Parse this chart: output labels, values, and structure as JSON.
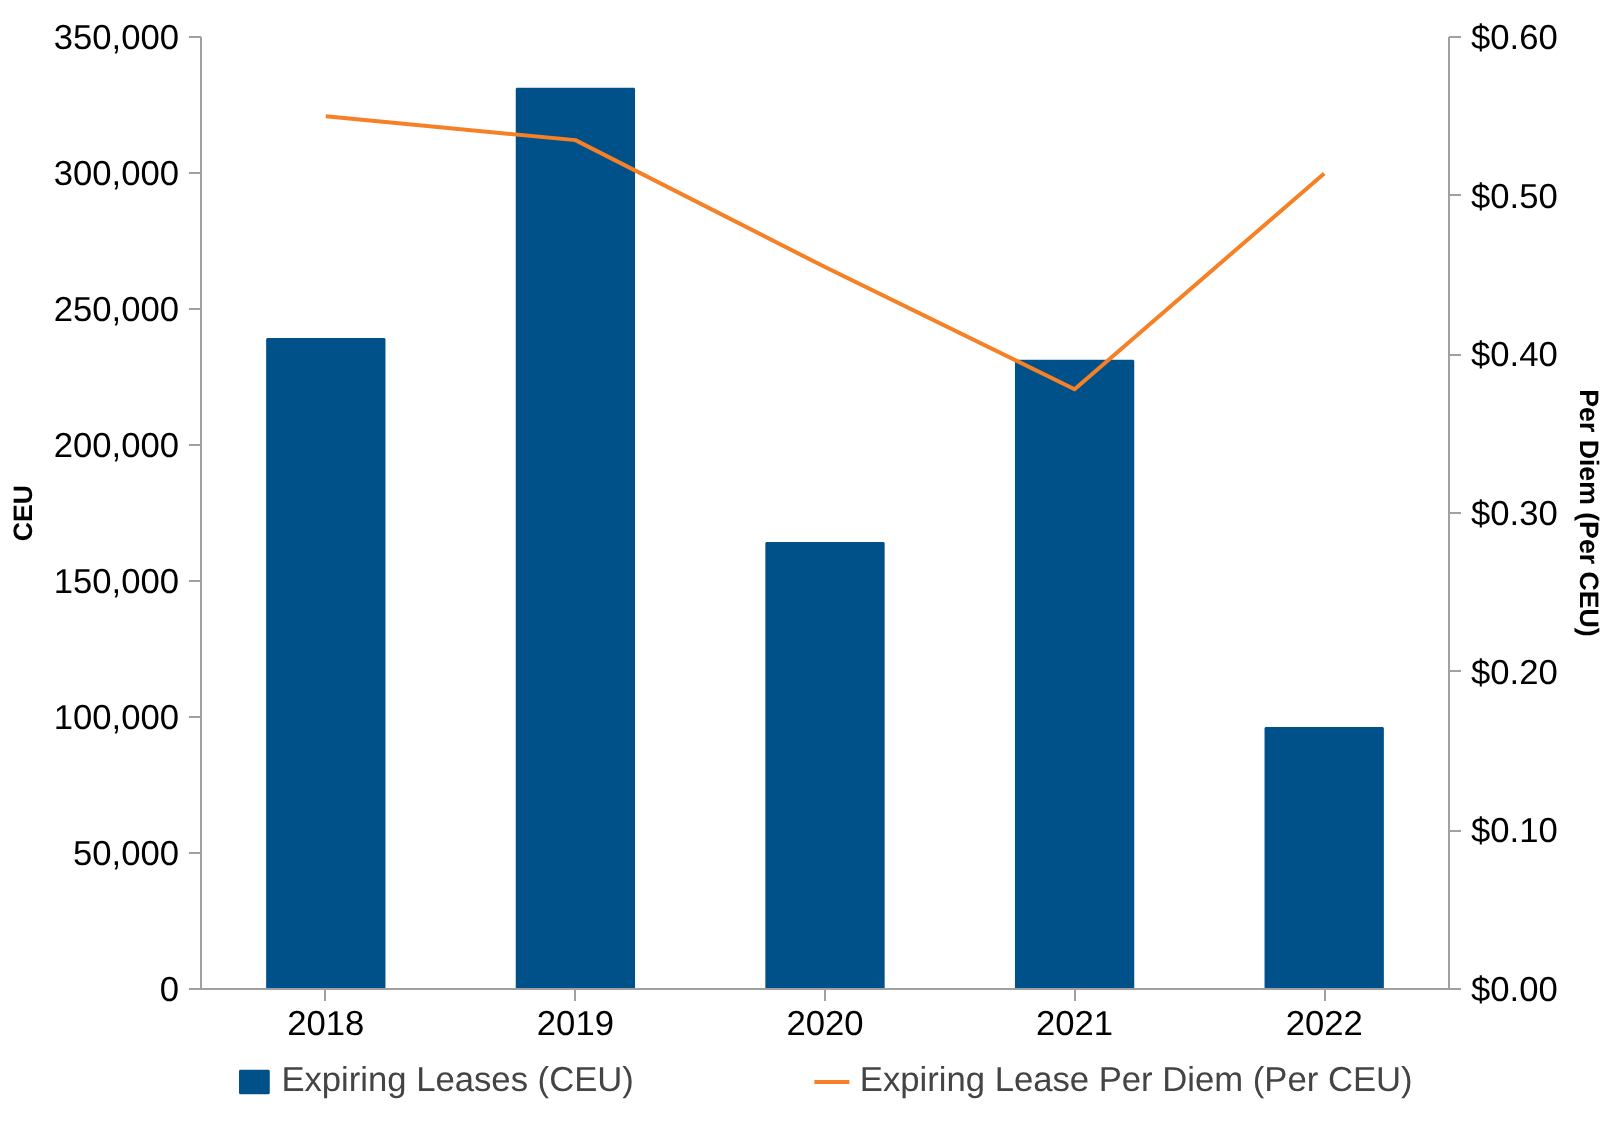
{
  "chart_data": {
    "type": "bar",
    "categories": [
      "2018",
      "2019",
      "2020",
      "2021",
      "2022"
    ],
    "ylabel": "CEU",
    "y2label": "Per Diem (Per CEU)",
    "series": [
      {
        "name": "Expiring Leases (CEU)",
        "color": "#00508a",
        "values": [
          239000,
          331000,
          164000,
          231000,
          96000
        ]
      },
      {
        "name": "Expiring Lease Per Diem (Per CEU)",
        "type": "line",
        "axis": "y2",
        "color": "#f58025",
        "values": [
          0.55,
          0.535,
          0.455,
          0.378,
          0.514
        ]
      }
    ],
    "ylim": [
      0,
      350000
    ],
    "yticks": [
      {
        "value": 0,
        "label": "0"
      },
      {
        "value": 50000,
        "label": "50,000"
      },
      {
        "value": 100000,
        "label": "100,000"
      },
      {
        "value": 150000,
        "label": "150,000"
      },
      {
        "value": 200000,
        "label": "200,000"
      },
      {
        "value": 250000,
        "label": "250,000"
      },
      {
        "value": 300000,
        "label": "300,000"
      },
      {
        "value": 350000,
        "label": "350,000"
      }
    ],
    "y2lim": [
      0,
      0.6
    ],
    "y2ticks": [
      {
        "value": 0,
        "label": "$0.00"
      },
      {
        "value": 0.1,
        "label": "$0.10"
      },
      {
        "value": 0.2,
        "label": "$0.20"
      },
      {
        "value": 0.3,
        "label": "$0.30"
      },
      {
        "value": 0.4,
        "label": "$0.40"
      },
      {
        "value": 0.5,
        "label": "$0.50"
      },
      {
        "value": 0.6,
        "label": "$0.60"
      }
    ],
    "grid": false,
    "legend": "bottom",
    "marker": "none",
    "line_style": "solid"
  }
}
